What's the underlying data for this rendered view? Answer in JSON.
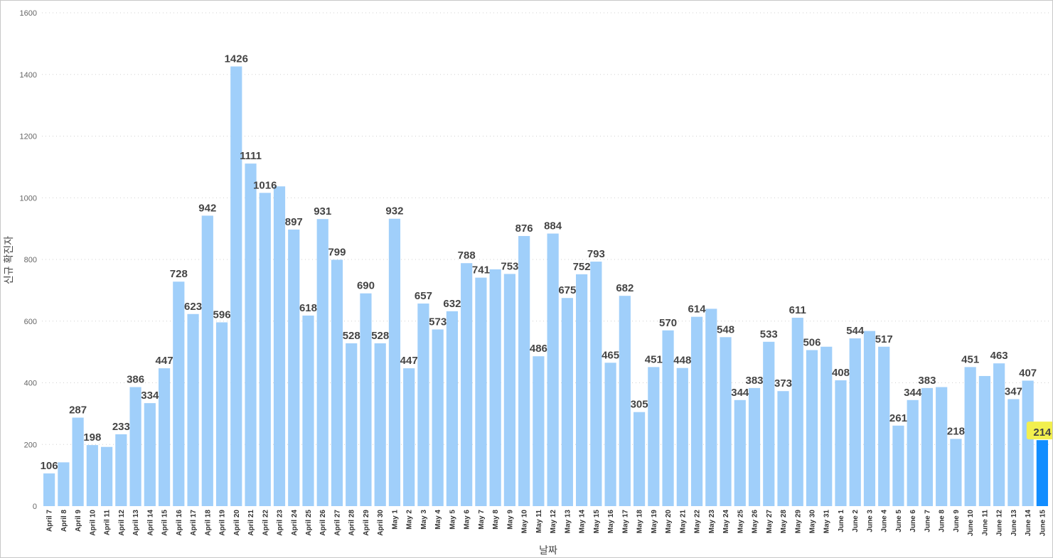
{
  "chart_data": {
    "type": "bar",
    "title": "",
    "xlabel": "날짜",
    "ylabel": "신규 확진자",
    "ylim": [
      0,
      1600
    ],
    "yticks": [
      0,
      200,
      400,
      600,
      800,
      1000,
      1200,
      1400,
      1600
    ],
    "grid": true,
    "categories": [
      "April 7",
      "April 8",
      "April 9",
      "April 10",
      "April 11",
      "April 12",
      "April 13",
      "April 14",
      "April 15",
      "April 16",
      "April 17",
      "April 18",
      "April 19",
      "April 20",
      "April 21",
      "April 22",
      "April 23",
      "April 24",
      "April 25",
      "April 26",
      "April 27",
      "April 28",
      "April 29",
      "April 30",
      "May 1",
      "May 2",
      "May 3",
      "May 4",
      "May 5",
      "May 6",
      "May 7",
      "May 8",
      "May 9",
      "May 10",
      "May 11",
      "May 12",
      "May 13",
      "May 14",
      "May 15",
      "May 16",
      "May 17",
      "May 18",
      "May 19",
      "May 20",
      "May 21",
      "May 22",
      "May 23",
      "May 24",
      "May 25",
      "May 26",
      "May 27",
      "May 28",
      "May 29",
      "May 30",
      "May 31",
      "June 1",
      "June 2",
      "June 3",
      "June 4",
      "June 5",
      "June 6",
      "June 7",
      "June 8",
      "June 9",
      "June 10",
      "June 11",
      "June 12",
      "June 13",
      "June 14",
      "June 15"
    ],
    "values": [
      106,
      142,
      287,
      198,
      192,
      233,
      386,
      334,
      447,
      728,
      623,
      942,
      596,
      1426,
      1111,
      1016,
      1037,
      897,
      618,
      931,
      799,
      528,
      690,
      528,
      932,
      447,
      657,
      573,
      632,
      788,
      741,
      768,
      753,
      876,
      486,
      884,
      675,
      752,
      793,
      465,
      682,
      305,
      451,
      570,
      448,
      614,
      640,
      548,
      344,
      383,
      533,
      373,
      611,
      506,
      517,
      408,
      544,
      568,
      517,
      261,
      344,
      383,
      386,
      218,
      451,
      422,
      463,
      347,
      407,
      214
    ],
    "data_labels": [
      "106",
      "",
      "287",
      "198",
      "",
      "233",
      "386",
      "334",
      "447",
      "728",
      "623",
      "942",
      "596",
      "1426",
      "1111",
      "1016",
      "",
      "897",
      "618",
      "931",
      "799",
      "528",
      "690",
      "528",
      "932",
      "447",
      "657",
      "573",
      "632",
      "788",
      "741",
      "",
      "753",
      "876",
      "486",
      "884",
      "675",
      "752",
      "793",
      "465",
      "682",
      "305",
      "451",
      "570",
      "448",
      "614",
      "",
      "548",
      "344",
      "383",
      "533",
      "373",
      "611",
      "506",
      "",
      "408",
      "544",
      "",
      "517",
      "261",
      "344",
      "383",
      "",
      "218",
      "451",
      "",
      "463",
      "347",
      "407",
      "214"
    ],
    "highlight_index": 69,
    "colors": {
      "bar": "#a0cffa",
      "highlight_bar": "#118dff",
      "highlight_label_bg": "#f2ef4e",
      "label": "#444444"
    }
  }
}
